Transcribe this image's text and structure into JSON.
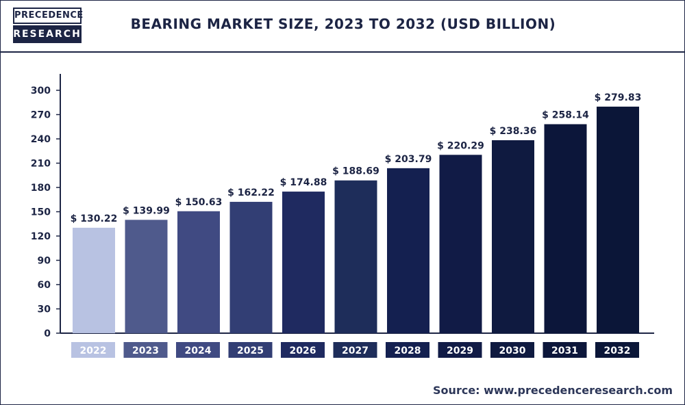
{
  "brand": {
    "logo_top": "PRECEDENCE",
    "logo_bottom": "RESEARCH"
  },
  "chart_data": {
    "type": "bar",
    "title": "BEARING MARKET SIZE, 2023 TO 2032 (USD BILLION)",
    "categories": [
      "2022",
      "2023",
      "2024",
      "2025",
      "2026",
      "2027",
      "2028",
      "2029",
      "2030",
      "2031",
      "2032"
    ],
    "values": [
      130.22,
      139.99,
      150.63,
      162.22,
      174.88,
      188.69,
      203.79,
      220.29,
      238.36,
      258.14,
      279.83
    ],
    "value_labels": [
      "$ 130.22",
      "$ 139.99",
      "$ 150.63",
      "$ 162.22",
      "$ 174.88",
      "$ 188.69",
      "$ 203.79",
      "$ 220.29",
      "$ 238.36",
      "$ 258.14",
      "$ 279.83"
    ],
    "y_ticks": [
      0,
      30,
      60,
      90,
      120,
      150,
      180,
      210,
      240,
      270,
      300
    ],
    "ylim": [
      0,
      300
    ],
    "xlabel": "",
    "ylabel": "",
    "grid": false,
    "colors": [
      "#b8c2e2",
      "#4f5a8c",
      "#404a82",
      "#323e74",
      "#1f2a60",
      "#1e2d5a",
      "#142050",
      "#111b46",
      "#0f1a40",
      "#0c163a",
      "#0b1638"
    ]
  },
  "source_text": "Source: www.precedenceresearch.com"
}
